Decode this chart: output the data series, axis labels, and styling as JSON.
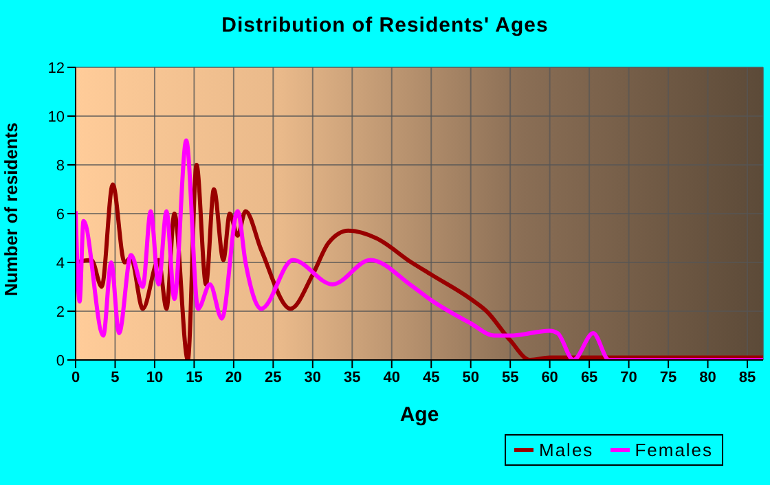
{
  "chart_data": {
    "type": "line",
    "title": "Distribution of Residents' Ages",
    "xlabel": "Age",
    "ylabel": "Number of residents",
    "xlim": [
      0,
      87
    ],
    "xticks": [
      0,
      5,
      10,
      15,
      20,
      25,
      30,
      35,
      40,
      45,
      50,
      55,
      60,
      65,
      70,
      75,
      80,
      85
    ],
    "ylim": [
      0,
      12
    ],
    "yticks": [
      0,
      2,
      4,
      6,
      8,
      10,
      12
    ],
    "grid": true,
    "legend": "bottom right",
    "marker": "none",
    "line_style": "solid",
    "series": [
      {
        "name": "Males",
        "color": "#990000",
        "x": [
          0,
          2,
          3.3,
          4.7,
          6.2,
          7,
          8.5,
          10.5,
          11.5,
          12.5,
          14.2,
          15.3,
          16.5,
          17.5,
          18.7,
          19.5,
          20.5,
          21.5,
          23.5,
          27.2,
          30,
          32,
          34.5,
          38,
          42.5,
          45,
          50,
          52,
          55,
          57.5,
          60,
          87
        ],
        "values": [
          4,
          4.1,
          3,
          7.2,
          4,
          4.2,
          2.1,
          4.1,
          2.1,
          6,
          0,
          8,
          3.1,
          7,
          4.1,
          6,
          5.1,
          6.1,
          4.5,
          2.1,
          3.5,
          4.8,
          5.3,
          5,
          4,
          3.5,
          2.5,
          2,
          0.8,
          0,
          0.1,
          0.1
        ]
      },
      {
        "name": "Females",
        "color": "#ff00ff",
        "x": [
          0,
          0.5,
          1,
          3.5,
          4.5,
          5.5,
          7,
          8.5,
          9.5,
          10.5,
          11.5,
          12.5,
          14,
          15.5,
          17,
          18.5,
          20.5,
          21.5,
          23.5,
          27.5,
          32.5,
          37.3,
          42.5,
          45,
          50,
          53,
          55,
          60,
          61,
          63,
          65.5,
          67.5,
          70,
          87
        ],
        "values": [
          6.1,
          2.4,
          5.7,
          1,
          4,
          1.1,
          4.3,
          3,
          6.1,
          3.1,
          6.1,
          2.5,
          9,
          2.1,
          3.1,
          1.7,
          6.1,
          4,
          2.1,
          4.1,
          3.1,
          4.1,
          3.05,
          2.45,
          1.5,
          1,
          1,
          1.2,
          1.1,
          0,
          1.1,
          0,
          0,
          0
        ]
      }
    ]
  }
}
